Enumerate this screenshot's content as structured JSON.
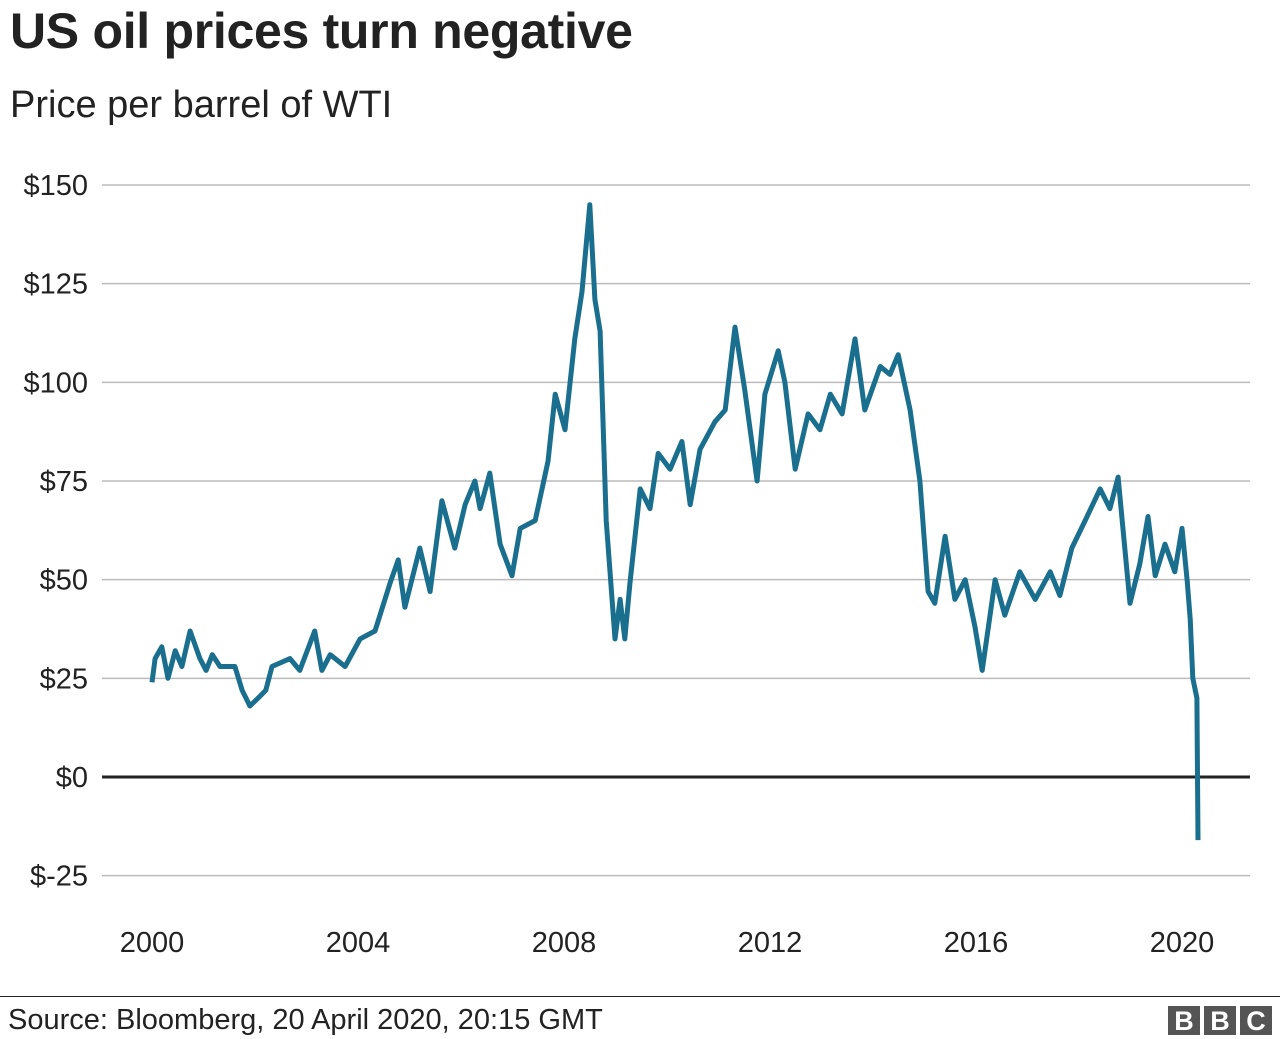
{
  "header": {
    "title": "US oil prices turn negative",
    "subtitle": "Price per barrel of WTI"
  },
  "footer": {
    "source": "Source: Bloomberg, 20 April 2020, 20:15 GMT",
    "logo_text": "BBC"
  },
  "chart_data": {
    "type": "line",
    "title": "US oil prices turn negative",
    "subtitle": "Price per barrel of WTI",
    "xlabel": "",
    "ylabel": "",
    "xlim": [
      1999.0,
      2021.4
    ],
    "ylim": [
      -25,
      150
    ],
    "grid": true,
    "y_ticks": [
      -25,
      0,
      25,
      50,
      75,
      100,
      125,
      150
    ],
    "y_tick_labels": [
      "$-25",
      "$0",
      "$25",
      "$50",
      "$75",
      "$100",
      "$125",
      "$150"
    ],
    "x_ticks": [
      2000,
      2004,
      2008,
      2012,
      2016,
      2020
    ],
    "x_tick_labels": [
      "2000",
      "2004",
      "2008",
      "2012",
      "2016",
      "2020"
    ],
    "line_color": "#1a6e8e",
    "zero_line_color": "#222222",
    "grid_color": "#bbbbbb",
    "series": [
      {
        "x": [
          2000.0,
          2000.06,
          2000.19,
          2000.31,
          2000.45,
          2000.58,
          2000.74,
          2000.93,
          2001.05,
          2001.17,
          2001.32,
          2001.61,
          2001.75,
          2001.9,
          2002.06,
          2002.21,
          2002.33,
          2002.68,
          2002.87,
          2003.16,
          2003.3,
          2003.46,
          2003.75,
          2004.04,
          2004.33,
          2004.62,
          2004.78,
          2004.91,
          2005.2,
          2005.4,
          2005.63,
          2005.88,
          2006.08,
          2006.27,
          2006.37,
          2006.56,
          2006.76,
          2006.99,
          2007.15,
          2007.44,
          2007.69,
          2007.83,
          2008.02,
          2008.21,
          2008.35,
          2008.5,
          2008.6,
          2008.7,
          2008.82,
          2008.99,
          2009.09,
          2009.18,
          2009.28,
          2009.48,
          2009.67,
          2009.83,
          2010.06,
          2010.29,
          2010.45,
          2010.64,
          2010.93,
          2011.13,
          2011.32,
          2011.51,
          2011.75,
          2011.9,
          2012.16,
          2012.29,
          2012.49,
          2012.74,
          2012.97,
          2013.17,
          2013.4,
          2013.65,
          2013.84,
          2014.14,
          2014.33,
          2014.49,
          2014.72,
          2014.91,
          2015.07,
          2015.2,
          2015.4,
          2015.59,
          2015.79,
          2015.98,
          2016.12,
          2016.37,
          2016.56,
          2016.85,
          2017.15,
          2017.44,
          2017.63,
          2017.86,
          2018.12,
          2018.41,
          2018.6,
          2018.76,
          2018.99,
          2019.18,
          2019.34,
          2019.48,
          2019.67,
          2019.86,
          2020.0,
          2020.1,
          2020.16,
          2020.21,
          2020.29,
          2020.31
        ],
        "values": [
          24,
          30,
          33,
          25,
          32,
          28,
          37,
          30,
          27,
          31,
          28,
          28,
          22,
          18,
          20,
          22,
          28,
          30,
          27,
          37,
          27,
          31,
          28,
          35,
          37,
          49,
          55,
          43,
          58,
          47,
          70,
          58,
          69,
          75,
          68,
          77,
          59,
          51,
          63,
          65,
          80,
          97,
          88,
          111,
          123,
          145,
          121,
          113,
          65,
          35,
          45,
          35,
          49,
          73,
          68,
          82,
          78,
          85,
          69,
          83,
          90,
          93,
          114,
          98,
          75,
          97,
          108,
          100,
          78,
          92,
          88,
          97,
          92,
          111,
          93,
          104,
          102,
          107,
          93,
          75,
          47,
          44,
          61,
          45,
          50,
          38,
          27,
          50,
          41,
          52,
          45,
          52,
          46,
          58,
          65,
          73,
          68,
          76,
          44,
          54,
          66,
          51,
          59,
          52,
          63,
          50,
          40,
          25,
          20,
          -16
        ]
      }
    ]
  }
}
